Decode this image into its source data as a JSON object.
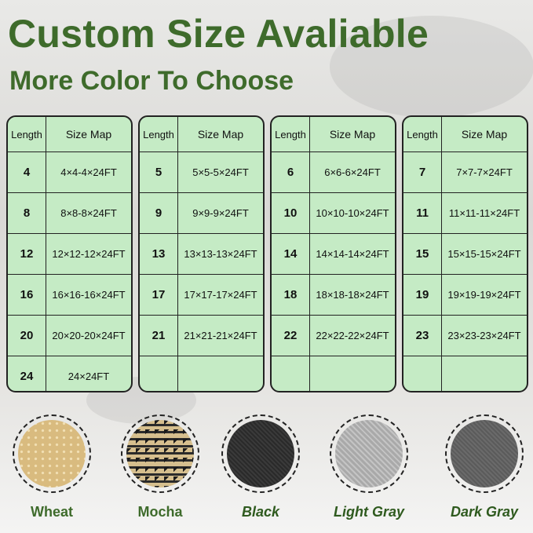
{
  "title": "Custom Size Avaliable",
  "subtitle": "More Color To Choose",
  "table_headers": {
    "length": "Length",
    "size_map": "Size Map"
  },
  "tables": [
    {
      "rows": [
        {
          "length": "4",
          "size": "4×4-4×24FT"
        },
        {
          "length": "8",
          "size": "8×8-8×24FT"
        },
        {
          "length": "12",
          "size": "12×12-12×24FT"
        },
        {
          "length": "16",
          "size": "16×16-16×24FT"
        },
        {
          "length": "20",
          "size": "20×20-20×24FT"
        },
        {
          "length": "24",
          "size": "24×24FT"
        }
      ]
    },
    {
      "rows": [
        {
          "length": "5",
          "size": "5×5-5×24FT"
        },
        {
          "length": "9",
          "size": "9×9-9×24FT"
        },
        {
          "length": "13",
          "size": "13×13-13×24FT"
        },
        {
          "length": "17",
          "size": "17×17-17×24FT"
        },
        {
          "length": "21",
          "size": "21×21-21×24FT"
        },
        {
          "length": "",
          "size": ""
        }
      ]
    },
    {
      "rows": [
        {
          "length": "6",
          "size": "6×6-6×24FT"
        },
        {
          "length": "10",
          "size": "10×10-10×24FT"
        },
        {
          "length": "14",
          "size": "14×14-14×24FT"
        },
        {
          "length": "18",
          "size": "18×18-18×24FT"
        },
        {
          "length": "22",
          "size": "22×22-22×24FT"
        },
        {
          "length": "",
          "size": ""
        }
      ]
    },
    {
      "rows": [
        {
          "length": "7",
          "size": "7×7-7×24FT"
        },
        {
          "length": "11",
          "size": "11×11-11×24FT"
        },
        {
          "length": "15",
          "size": "15×15-15×24FT"
        },
        {
          "length": "19",
          "size": "19×19-19×24FT"
        },
        {
          "length": "23",
          "size": "23×23-23×24FT"
        },
        {
          "length": "",
          "size": ""
        }
      ]
    }
  ],
  "colors": [
    {
      "name": "Wheat",
      "swatch": "#d9bb7f"
    },
    {
      "name": "Mocha",
      "swatch": "#8a7550"
    },
    {
      "name": "Black",
      "swatch": "#2a2a2a"
    },
    {
      "name": "Light Gray",
      "swatch": "#a9a9a9"
    },
    {
      "name": "Dark Gray",
      "swatch": "#5b5b5b"
    }
  ],
  "accent_color": "#3e6b2b"
}
